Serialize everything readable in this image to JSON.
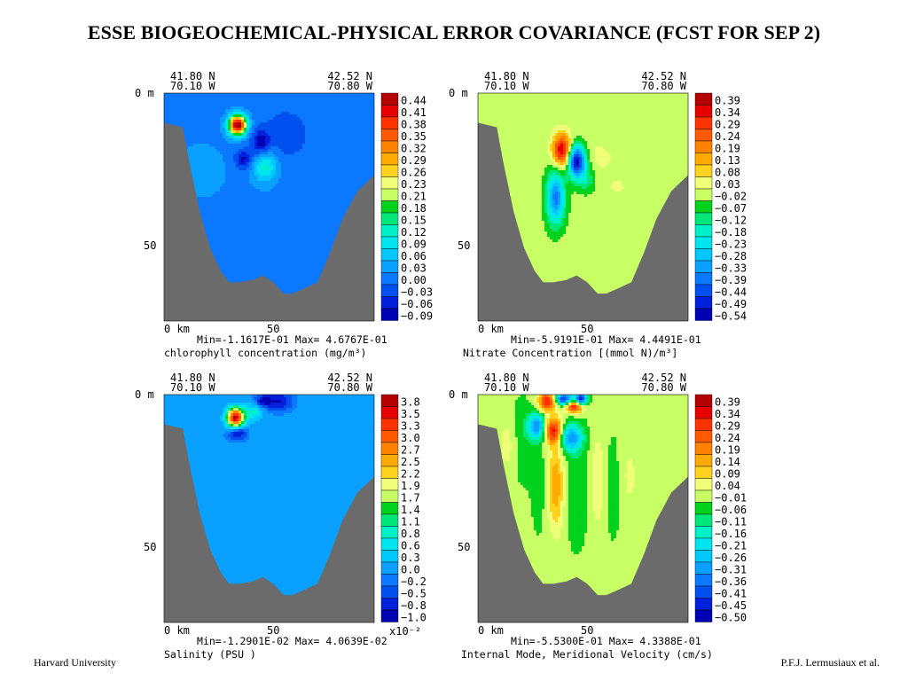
{
  "header": {
    "title": "ESSE BIOGEOCHEMICAL-PHYSICAL ERROR COVARIANCE  (FCST FOR SEP 2)"
  },
  "footer": {
    "left": "Harvard University",
    "right": "P.F.J. Lermusiaux et al."
  },
  "colors": {
    "land": "#6b6b6b",
    "palette": [
      "#0000b4",
      "#0020dc",
      "#0050f0",
      "#0a78ff",
      "#0aa0ff",
      "#00c8ff",
      "#00e6f0",
      "#00f0c8",
      "#00e678",
      "#00d21e",
      "#c8ff64",
      "#f0ff78",
      "#ffd21e",
      "#ffaa00",
      "#ff8200",
      "#ff5a00",
      "#ff3200",
      "#e60000",
      "#b40000"
    ]
  },
  "chart_data": [
    {
      "type": "heatmap",
      "title": "",
      "top_left_coord": [
        "41.80 N",
        "70.10 W"
      ],
      "top_right_coord": [
        "42.52 N",
        "70.80 W"
      ],
      "y_ticks": [
        "0 m",
        "50"
      ],
      "x_ticks": [
        "0 km",
        "50"
      ],
      "min_max": "Min=-1.1617E-01  Max= 4.6767E-01",
      "variable": "chlorophyll concentration (mg/m³)",
      "legend_levels": [
        "0.44",
        "0.41",
        "0.38",
        "0.35",
        "0.32",
        "0.29",
        "0.26",
        "0.23",
        "0.21",
        "0.18",
        "0.15",
        "0.12",
        "0.09",
        "0.06",
        "0.03",
        "0.00",
        "−0.03",
        "−0.06",
        "−0.09"
      ],
      "legend_multiplier": "",
      "background_level": 0.02,
      "blobs": [
        {
          "x": 35,
          "y": 14,
          "sx": 3,
          "sy": 3,
          "a": 0.46
        },
        {
          "x": 46,
          "y": 22,
          "sx": 3,
          "sy": 4,
          "a": -0.1
        },
        {
          "x": 38,
          "y": 29,
          "sx": 3,
          "sy": 3,
          "a": -0.09
        },
        {
          "x": 48,
          "y": 32,
          "sx": 4,
          "sy": 5,
          "a": 0.11
        },
        {
          "x": 58,
          "y": 18,
          "sx": 8,
          "sy": 8,
          "a": -0.04
        },
        {
          "x": 18,
          "y": 34,
          "sx": 10,
          "sy": 10,
          "a": 0.02
        }
      ]
    },
    {
      "type": "heatmap",
      "title": "",
      "top_left_coord": [
        "41.80 N",
        "70.10 W"
      ],
      "top_right_coord": [
        "42.52 N",
        "70.80 W"
      ],
      "y_ticks": [
        "0 m",
        "50"
      ],
      "x_ticks": [
        "0 km",
        "50"
      ],
      "min_max": "Min=-5.9191E-01  Max= 4.4491E-01",
      "variable": "Nitrate Concentration [(mmol N)/m³]",
      "legend_levels": [
        "0.39",
        "0.34",
        "0.29",
        "0.24",
        "0.19",
        "0.13",
        "0.08",
        "0.03",
        "−0.02",
        "−0.07",
        "−0.12",
        "−0.18",
        "−0.23",
        "−0.28",
        "−0.33",
        "−0.39",
        "−0.44",
        "−0.49",
        "−0.54"
      ],
      "legend_multiplier": "",
      "background_level": 0.0,
      "blobs": [
        {
          "x": 40,
          "y": 25,
          "sx": 3,
          "sy": 5,
          "a": 0.4
        },
        {
          "x": 47,
          "y": 30,
          "sx": 3,
          "sy": 5,
          "a": -0.55
        },
        {
          "x": 52,
          "y": 38,
          "sx": 3,
          "sy": 4,
          "a": -0.1
        },
        {
          "x": 37,
          "y": 46,
          "sx": 3,
          "sy": 8,
          "a": -0.35
        },
        {
          "x": 55,
          "y": 28,
          "sx": 10,
          "sy": 7,
          "a": 0.04
        },
        {
          "x": 67,
          "y": 42,
          "sx": 6,
          "sy": 5,
          "a": 0.03
        }
      ]
    },
    {
      "type": "heatmap",
      "title": "",
      "top_left_coord": [
        "41.80 N",
        "70.10 W"
      ],
      "top_right_coord": [
        "42.52 N",
        "70.80 W"
      ],
      "y_ticks": [
        "0 m",
        "50"
      ],
      "x_ticks": [
        "0 km",
        "50"
      ],
      "min_max": "Min=-1.2901E-02  Max= 4.0639E-02",
      "variable": "Salinity (PSU )",
      "legend_levels": [
        "3.8",
        "3.5",
        "3.3",
        "3.0",
        "2.7",
        "2.5",
        "2.2",
        "1.9",
        "1.7",
        "1.4",
        "1.1",
        "0.8",
        "0.6",
        "0.3",
        "0.0",
        "−0.2",
        "−0.5",
        "−0.8",
        "−1.0"
      ],
      "legend_multiplier": "x10⁻²",
      "background_level": 0.0,
      "blobs": [
        {
          "x": 34,
          "y": 10,
          "sx": 3,
          "sy": 3,
          "a": 3.8
        },
        {
          "x": 35,
          "y": 17,
          "sx": 3,
          "sy": 2,
          "a": -1.0
        },
        {
          "x": 47,
          "y": 3,
          "sx": 3,
          "sy": 2,
          "a": -1.0
        },
        {
          "x": 55,
          "y": 3,
          "sx": 4,
          "sy": 3,
          "a": -0.9
        },
        {
          "x": 43,
          "y": 7,
          "sx": 3,
          "sy": 3,
          "a": 0.8
        },
        {
          "x": 65,
          "y": 38,
          "sx": 22,
          "sy": 22,
          "a": 0.3
        }
      ]
    },
    {
      "type": "heatmap",
      "title": "",
      "top_left_coord": [
        "41.80 N",
        "70.10 W"
      ],
      "top_right_coord": [
        "42.52 N",
        "70.80 W"
      ],
      "y_ticks": [
        "0 m",
        "50"
      ],
      "x_ticks": [
        "0 km",
        "50"
      ],
      "min_max": "Min=-5.5300E-01  Max= 4.3388E-01",
      "variable": "Internal Mode, Meridional Velocity (cm/s)",
      "legend_levels": [
        "0.39",
        "0.34",
        "0.29",
        "0.24",
        "0.19",
        "0.14",
        "0.09",
        "0.04",
        "−0.01",
        "−0.06",
        "−0.11",
        "−0.16",
        "−0.21",
        "−0.26",
        "−0.31",
        "−0.36",
        "−0.41",
        "−0.45",
        "−0.50"
      ],
      "legend_multiplier": "",
      "background_level": 0.0,
      "blobs": [
        {
          "x": 33,
          "y": 3,
          "sx": 3,
          "sy": 3,
          "a": 0.35
        },
        {
          "x": 41,
          "y": 2,
          "sx": 3,
          "sy": 2,
          "a": -0.45
        },
        {
          "x": 46,
          "y": 5,
          "sx": 3,
          "sy": 2,
          "a": 0.4
        },
        {
          "x": 49,
          "y": 2,
          "sx": 2,
          "sy": 2,
          "a": -0.5
        },
        {
          "x": 28,
          "y": 14,
          "sx": 3,
          "sy": 4,
          "a": -0.3
        },
        {
          "x": 36,
          "y": 16,
          "sx": 3,
          "sy": 4,
          "a": 0.35
        },
        {
          "x": 44,
          "y": 19,
          "sx": 4,
          "sy": 4,
          "a": -0.3
        },
        {
          "x": 37,
          "y": 40,
          "sx": 3,
          "sy": 14,
          "a": 0.18
        },
        {
          "x": 30,
          "y": 40,
          "sx": 3,
          "sy": 14,
          "a": -0.04
        },
        {
          "x": 47,
          "y": 40,
          "sx": 4,
          "sy": 16,
          "a": -0.06
        },
        {
          "x": 57,
          "y": 38,
          "sx": 3,
          "sy": 16,
          "a": 0.08
        },
        {
          "x": 64,
          "y": 40,
          "sx": 3,
          "sy": 14,
          "a": -0.05
        },
        {
          "x": 72,
          "y": 36,
          "sx": 4,
          "sy": 12,
          "a": 0.05
        },
        {
          "x": 21,
          "y": 20,
          "sx": 4,
          "sy": 12,
          "a": -0.04
        },
        {
          "x": 14,
          "y": 22,
          "sx": 3,
          "sy": 8,
          "a": 0.07
        }
      ]
    }
  ]
}
